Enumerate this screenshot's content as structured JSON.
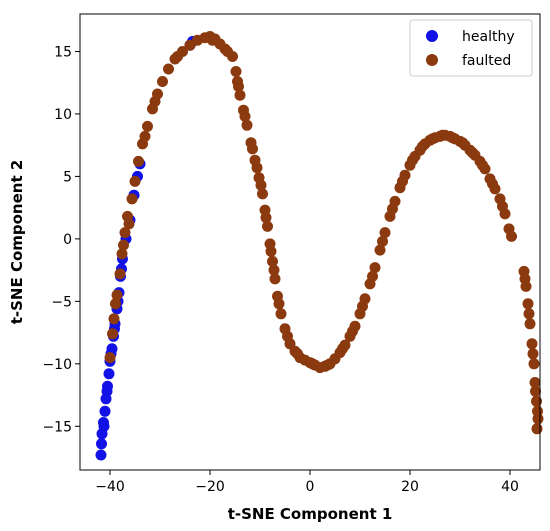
{
  "chart_data": {
    "type": "scatter",
    "title": "",
    "xlabel": "t-SNE Component 1",
    "ylabel": "t-SNE Component 2",
    "xlim": [
      -46,
      46
    ],
    "ylim": [
      -18.5,
      18
    ],
    "xticks": [
      -40,
      -20,
      0,
      20,
      40
    ],
    "yticks": [
      -15,
      -10,
      -5,
      0,
      5,
      10,
      15
    ],
    "grid": false,
    "legend_position": "top-right",
    "series": [
      {
        "name": "healthy",
        "color": "#1212e6",
        "points": [
          [
            -41.8,
            -17.3
          ],
          [
            -41.7,
            -16.4
          ],
          [
            -41.6,
            -15.6
          ],
          [
            -41.3,
            -14.7
          ],
          [
            -41.0,
            -13.8
          ],
          [
            -40.8,
            -12.8
          ],
          [
            -40.5,
            -11.8
          ],
          [
            -40.2,
            -10.8
          ],
          [
            -40.0,
            -9.8
          ],
          [
            -39.6,
            -8.8
          ],
          [
            -39.3,
            -7.8
          ],
          [
            -39.0,
            -6.8
          ],
          [
            -38.6,
            -5.6
          ],
          [
            -38.2,
            -4.3
          ],
          [
            -37.9,
            -3.0
          ],
          [
            -37.5,
            -1.6
          ],
          [
            -36.8,
            0.0
          ],
          [
            -36.0,
            1.5
          ],
          [
            -35.2,
            3.5
          ],
          [
            -34.5,
            5.0
          ],
          [
            -34.0,
            6.0
          ],
          [
            -24.0,
            15.5
          ],
          [
            -23.5,
            15.8
          ],
          [
            -41.2,
            -15.0
          ],
          [
            -40.6,
            -12.2
          ],
          [
            -39.8,
            -9.2
          ],
          [
            -39.1,
            -7.2
          ],
          [
            -38.4,
            -5.0
          ],
          [
            -37.7,
            -2.4
          ]
        ]
      },
      {
        "name": "faulted",
        "color": "#8b3a0f",
        "points": [
          [
            -38.6,
            -4.5
          ],
          [
            -38.0,
            -2.8
          ],
          [
            -37.6,
            -1.2
          ],
          [
            -37.0,
            0.5
          ],
          [
            -36.5,
            1.8
          ],
          [
            -35.6,
            3.2
          ],
          [
            -35.0,
            4.6
          ],
          [
            -34.3,
            6.2
          ],
          [
            -33.5,
            7.6
          ],
          [
            -32.5,
            9.0
          ],
          [
            -31.5,
            10.4
          ],
          [
            -30.5,
            11.6
          ],
          [
            -29.5,
            12.6
          ],
          [
            -28.3,
            13.6
          ],
          [
            -27.0,
            14.4
          ],
          [
            -25.5,
            15.0
          ],
          [
            -24.0,
            15.5
          ],
          [
            -22.5,
            15.9
          ],
          [
            -21.0,
            16.1
          ],
          [
            -20.0,
            16.2
          ],
          [
            -19.0,
            16.0
          ],
          [
            -18.0,
            15.6
          ],
          [
            -17.0,
            15.2
          ],
          [
            -15.5,
            14.6
          ],
          [
            -14.8,
            13.4
          ],
          [
            -14.5,
            12.6
          ],
          [
            -14.0,
            11.5
          ],
          [
            -13.3,
            10.3
          ],
          [
            -12.6,
            9.1
          ],
          [
            -11.8,
            7.7
          ],
          [
            -11.0,
            6.3
          ],
          [
            -10.2,
            4.9
          ],
          [
            -9.5,
            3.6
          ],
          [
            -9.0,
            2.3
          ],
          [
            -8.5,
            1.0
          ],
          [
            -8.0,
            -0.4
          ],
          [
            -7.5,
            -1.8
          ],
          [
            -7.0,
            -3.2
          ],
          [
            -6.5,
            -4.6
          ],
          [
            -5.8,
            -6.0
          ],
          [
            -5.0,
            -7.2
          ],
          [
            -4.0,
            -8.4
          ],
          [
            -3.0,
            -9.0
          ],
          [
            -2.0,
            -9.5
          ],
          [
            -1.0,
            -9.7
          ],
          [
            0.0,
            -9.9
          ],
          [
            1.0,
            -10.1
          ],
          [
            2.0,
            -10.3
          ],
          [
            3.0,
            -10.2
          ],
          [
            4.0,
            -10.0
          ],
          [
            5.0,
            -9.6
          ],
          [
            6.0,
            -9.1
          ],
          [
            7.0,
            -8.5
          ],
          [
            8.0,
            -7.8
          ],
          [
            9.0,
            -7.0
          ],
          [
            10.0,
            -6.0
          ],
          [
            11.0,
            -4.8
          ],
          [
            12.0,
            -3.6
          ],
          [
            13.0,
            -2.3
          ],
          [
            14.0,
            -0.9
          ],
          [
            15.0,
            0.5
          ],
          [
            16.0,
            1.8
          ],
          [
            17.0,
            3.0
          ],
          [
            18.0,
            4.1
          ],
          [
            19.0,
            5.1
          ],
          [
            20.0,
            5.9
          ],
          [
            21.0,
            6.6
          ],
          [
            22.0,
            7.1
          ],
          [
            23.0,
            7.6
          ],
          [
            24.0,
            7.9
          ],
          [
            25.0,
            8.1
          ],
          [
            26.0,
            8.2
          ],
          [
            27.0,
            8.3
          ],
          [
            28.0,
            8.2
          ],
          [
            29.0,
            8.0
          ],
          [
            30.0,
            7.8
          ],
          [
            31.0,
            7.5
          ],
          [
            32.0,
            7.1
          ],
          [
            33.0,
            6.7
          ],
          [
            34.0,
            6.2
          ],
          [
            35.0,
            5.6
          ],
          [
            36.0,
            4.8
          ],
          [
            37.0,
            4.0
          ],
          [
            38.0,
            3.2
          ],
          [
            39.0,
            2.0
          ],
          [
            39.8,
            0.8
          ],
          [
            40.3,
            0.2
          ],
          [
            42.8,
            -2.6
          ],
          [
            43.2,
            -3.8
          ],
          [
            43.6,
            -5.2
          ],
          [
            44.0,
            -6.8
          ],
          [
            44.4,
            -8.4
          ],
          [
            44.8,
            -10.0
          ],
          [
            45.0,
            -11.5
          ],
          [
            45.3,
            -13.0
          ],
          [
            45.6,
            -14.4
          ],
          [
            45.4,
            -15.2
          ],
          [
            -40.0,
            -9.5
          ],
          [
            -39.5,
            -7.6
          ],
          [
            -39.2,
            -6.4
          ],
          [
            -38.9,
            -5.2
          ],
          [
            -37.3,
            -0.5
          ],
          [
            -36.2,
            1.2
          ],
          [
            -33.0,
            8.2
          ],
          [
            -31.0,
            11.0
          ],
          [
            -26.5,
            14.6
          ],
          [
            -19.5,
            15.9
          ],
          [
            -16.5,
            15.0
          ],
          [
            -14.3,
            12.2
          ],
          [
            -13.0,
            9.8
          ],
          [
            -11.5,
            7.2
          ],
          [
            -10.6,
            5.7
          ],
          [
            -9.8,
            4.3
          ],
          [
            -8.8,
            1.7
          ],
          [
            -7.8,
            -1.0
          ],
          [
            -7.2,
            -2.5
          ],
          [
            -6.2,
            -5.2
          ],
          [
            -4.5,
            -7.8
          ],
          [
            -2.5,
            -9.2
          ],
          [
            0.5,
            -10.0
          ],
          [
            3.5,
            -10.1
          ],
          [
            6.5,
            -8.8
          ],
          [
            8.5,
            -7.4
          ],
          [
            10.5,
            -5.4
          ],
          [
            12.5,
            -3.0
          ],
          [
            14.5,
            -0.2
          ],
          [
            16.5,
            2.4
          ],
          [
            18.5,
            4.6
          ],
          [
            20.5,
            6.3
          ],
          [
            22.5,
            7.4
          ],
          [
            24.5,
            8.0
          ],
          [
            26.5,
            8.3
          ],
          [
            28.5,
            8.1
          ],
          [
            30.5,
            7.7
          ],
          [
            32.5,
            6.9
          ],
          [
            34.5,
            5.9
          ],
          [
            36.5,
            4.4
          ],
          [
            38.5,
            2.6
          ],
          [
            43.0,
            -3.2
          ],
          [
            43.8,
            -6.0
          ],
          [
            44.6,
            -9.2
          ],
          [
            45.1,
            -12.2
          ],
          [
            45.5,
            -13.8
          ]
        ]
      }
    ]
  }
}
